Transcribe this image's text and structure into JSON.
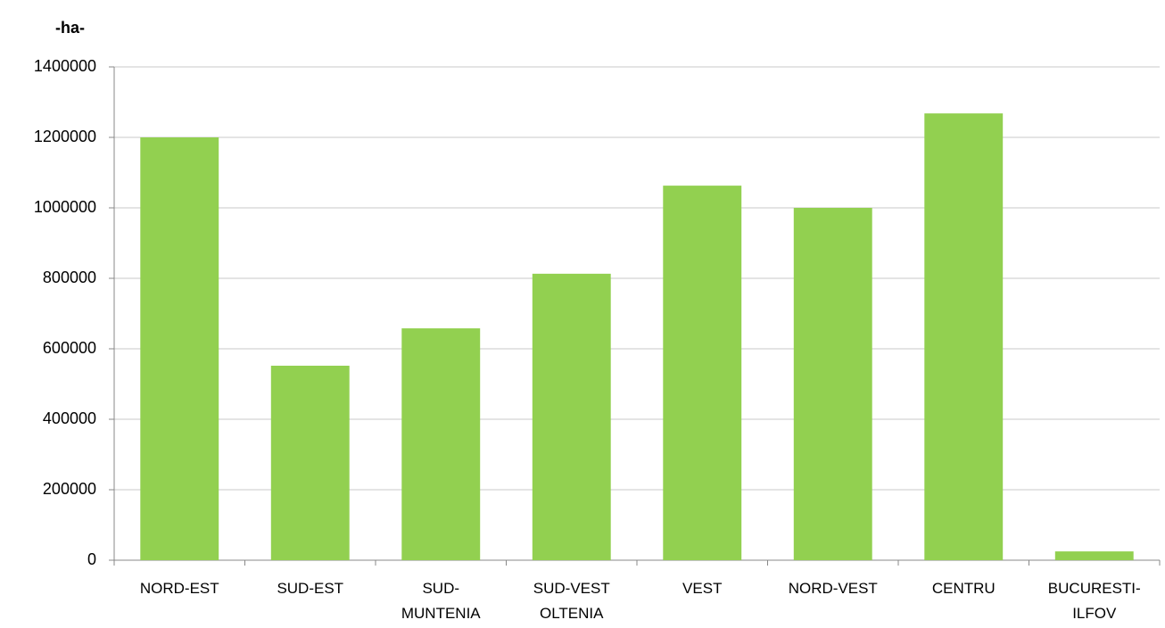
{
  "chart_data": {
    "type": "bar",
    "title": "-ha-",
    "categories": [
      "NORD-EST",
      "SUD-EST",
      "SUD-MUNTENIA",
      "SUD-VEST OLTENIA",
      "VEST",
      "NORD-VEST",
      "CENTRU",
      "BUCURESTI-ILFOV"
    ],
    "values": [
      1200000,
      552000,
      658000,
      813000,
      1063000,
      1000000,
      1268000,
      25000
    ],
    "color": "#92d050",
    "ylim": [
      0,
      1400000
    ],
    "yticks": [
      0,
      200000,
      400000,
      600000,
      800000,
      1000000,
      1200000,
      1400000
    ],
    "grid": true
  }
}
